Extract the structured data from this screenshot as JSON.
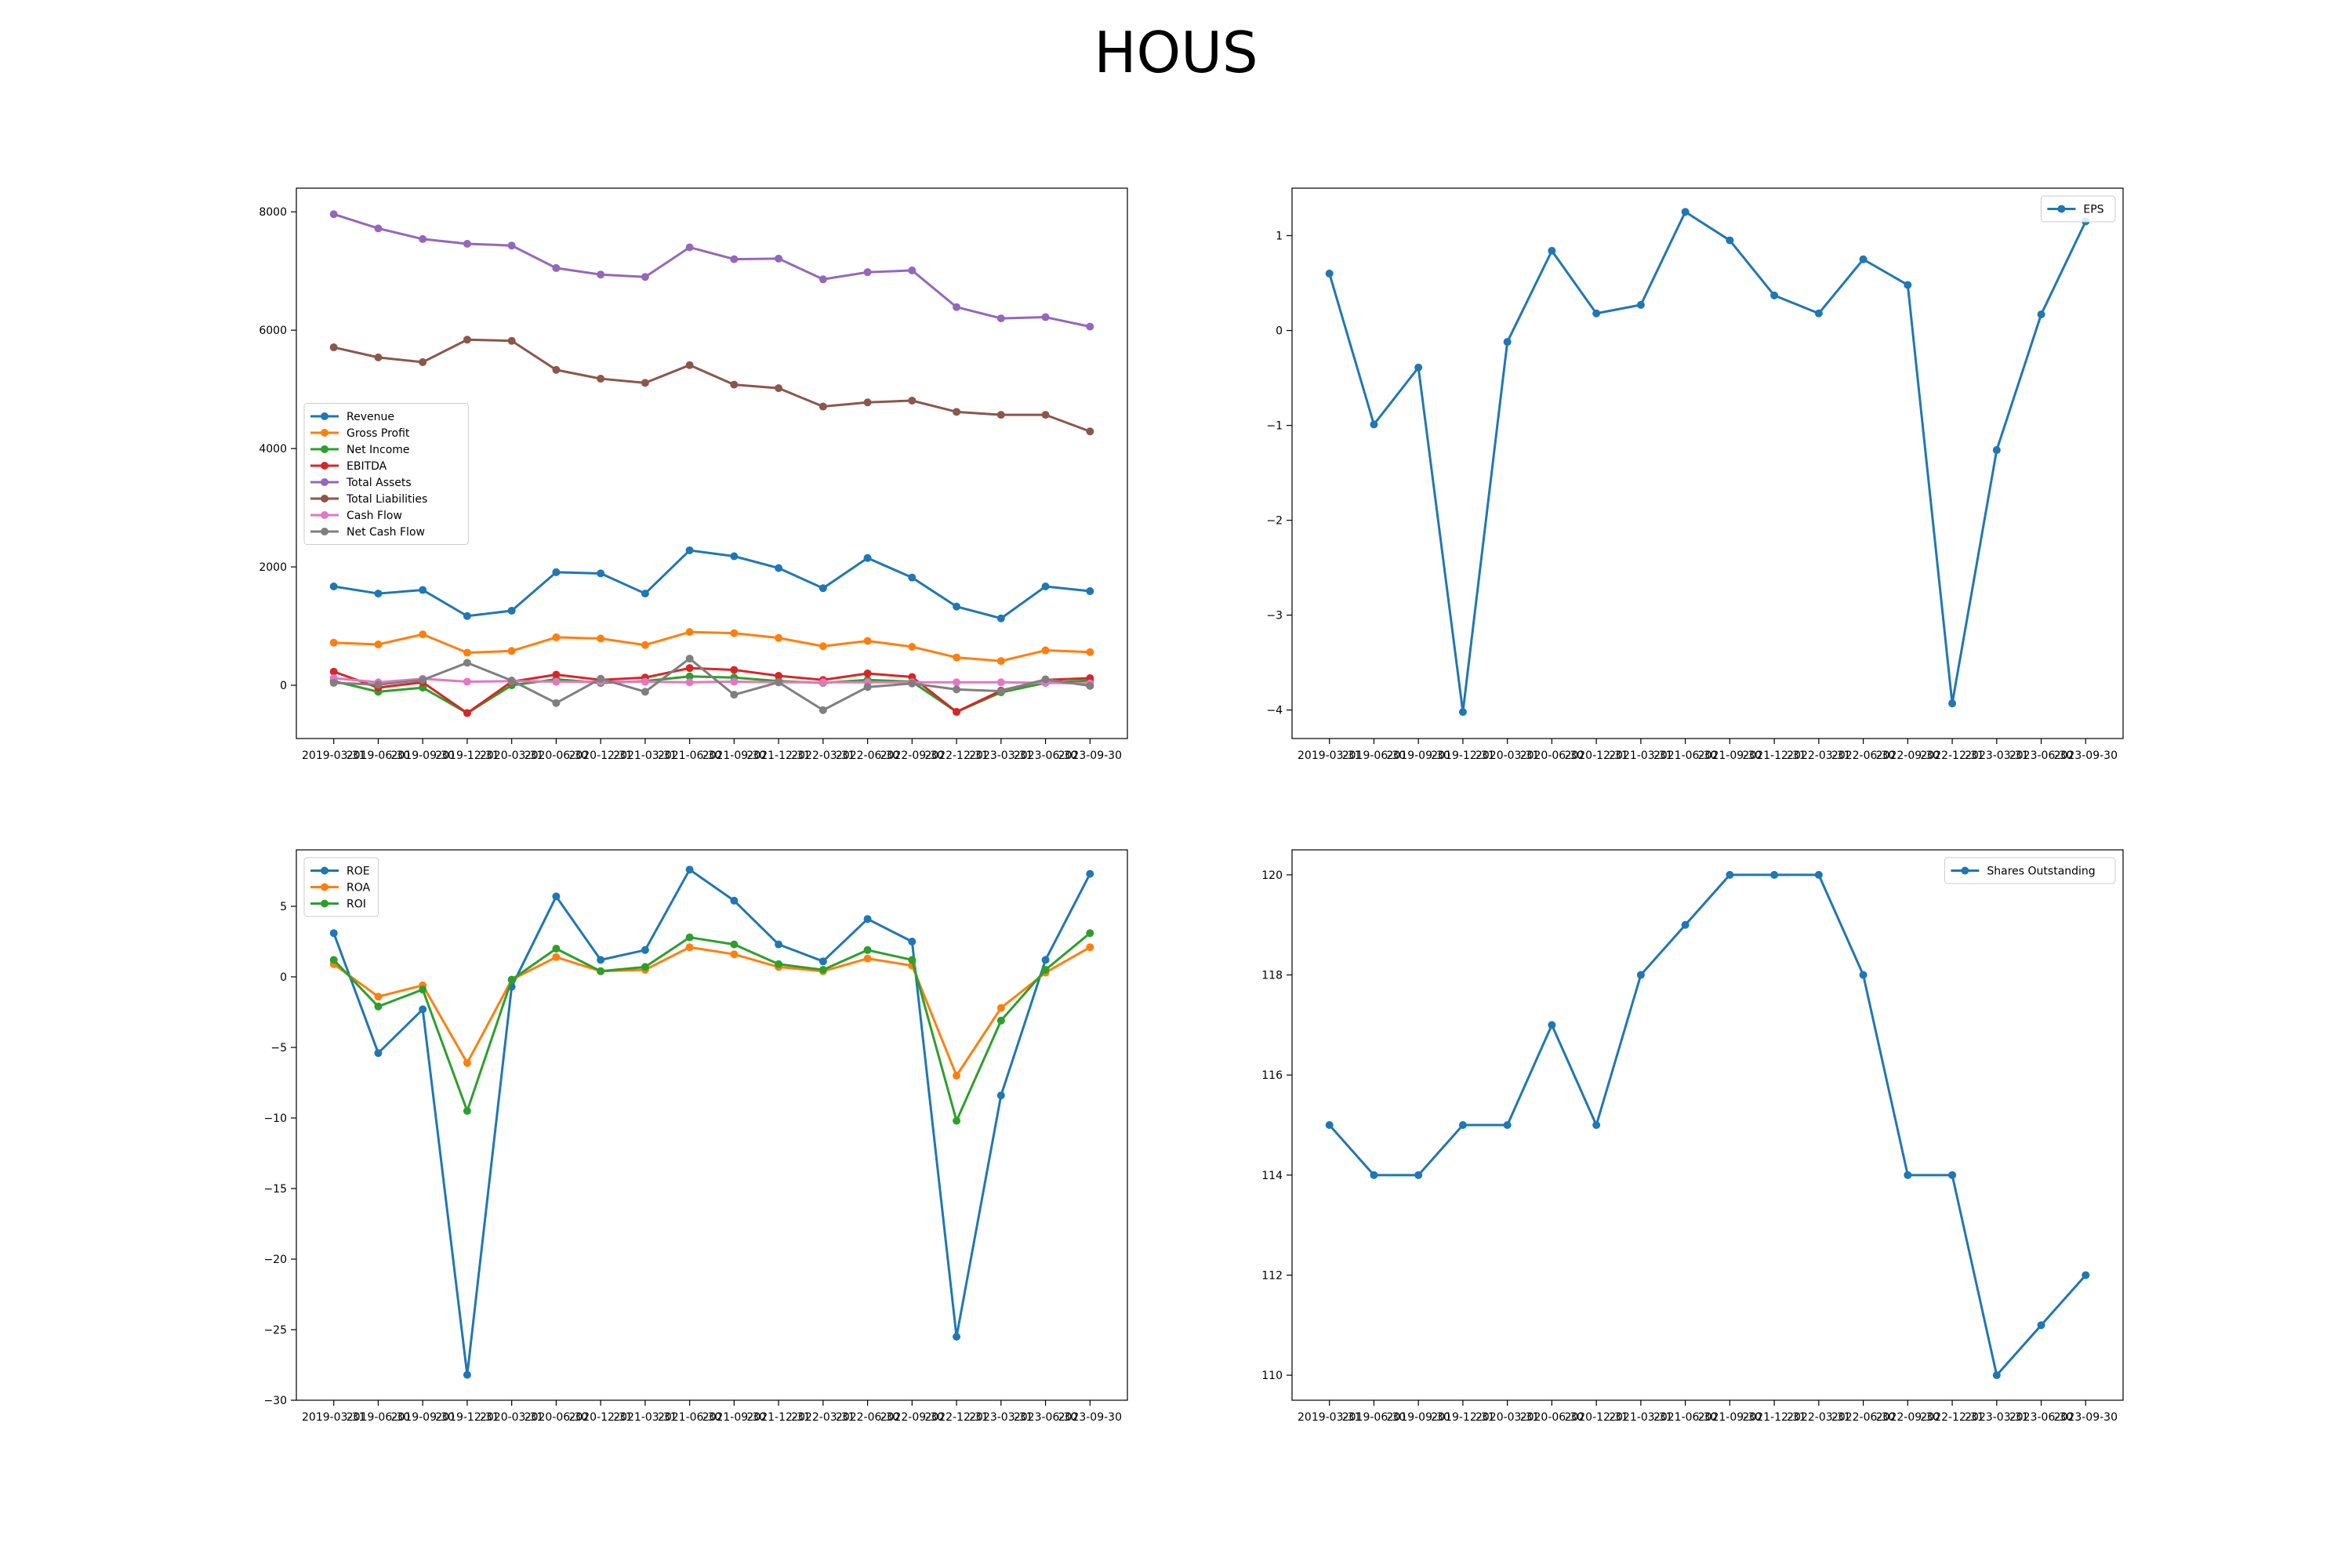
{
  "page_title": "HOUS",
  "x_dates": [
    "2019-03-31",
    "2019-06-30",
    "2019-09-30",
    "2019-12-31",
    "2020-03-31",
    "2020-06-30",
    "2020-12-31",
    "2021-03-31",
    "2021-06-30",
    "2021-09-30",
    "2021-12-31",
    "2022-03-31",
    "2022-06-30",
    "2022-09-30",
    "2022-12-31",
    "2023-03-31",
    "2023-06-30",
    "2023-09-30"
  ],
  "chart_data": [
    {
      "type": "line",
      "id": "financials",
      "title": "",
      "xlabel": "",
      "ylabel": "",
      "ylim": [
        -900,
        8400
      ],
      "yticks": [
        0,
        2000,
        4000,
        6000,
        8000
      ],
      "legend": "center-left",
      "grid": false,
      "series": [
        {
          "name": "Revenue",
          "color": "#1f77b4",
          "values": [
            1670,
            1550,
            1610,
            1170,
            1260,
            1910,
            1890,
            1550,
            2280,
            2180,
            1980,
            1640,
            2150,
            1820,
            1330,
            1130,
            1670,
            1590
          ]
        },
        {
          "name": "Gross Profit",
          "color": "#ff7f0e",
          "values": [
            720,
            690,
            860,
            550,
            580,
            810,
            790,
            680,
            900,
            880,
            800,
            660,
            750,
            650,
            470,
            410,
            590,
            560
          ]
        },
        {
          "name": "Net Income",
          "color": "#2ca02c",
          "values": [
            70,
            -110,
            -40,
            -470,
            0,
            100,
            40,
            70,
            150,
            130,
            70,
            40,
            90,
            60,
            -450,
            -120,
            40,
            80
          ]
        },
        {
          "name": "EBITDA",
          "color": "#d62728",
          "values": [
            230,
            -40,
            50,
            -470,
            60,
            180,
            90,
            130,
            290,
            260,
            160,
            90,
            200,
            140,
            -450,
            -90,
            90,
            120
          ]
        },
        {
          "name": "Total Assets",
          "color": "#9467bd",
          "values": [
            7960,
            7720,
            7540,
            7460,
            7430,
            7050,
            6940,
            6900,
            7400,
            7200,
            7210,
            6860,
            6980,
            7010,
            6390,
            6200,
            6220,
            6060
          ]
        },
        {
          "name": "Total Liabilities",
          "color": "#8c564b",
          "values": [
            5710,
            5540,
            5460,
            5840,
            5820,
            5330,
            5180,
            5110,
            5410,
            5080,
            5020,
            4710,
            4780,
            4810,
            4620,
            4570,
            4570,
            4290
          ]
        },
        {
          "name": "Cash Flow",
          "color": "#e377c2",
          "values": [
            120,
            50,
            110,
            60,
            70,
            60,
            60,
            60,
            50,
            60,
            50,
            50,
            50,
            50,
            50,
            50,
            40,
            30
          ]
        },
        {
          "name": "Net Cash Flow",
          "color": "#7f7f7f",
          "values": [
            40,
            10,
            90,
            380,
            80,
            -300,
            110,
            -110,
            450,
            -160,
            50,
            -420,
            -30,
            30,
            -70,
            -100,
            100,
            -10
          ]
        }
      ]
    },
    {
      "type": "line",
      "id": "eps",
      "title": "",
      "xlabel": "",
      "ylabel": "",
      "ylim": [
        -4.3,
        1.5
      ],
      "yticks": [
        -4,
        -3,
        -2,
        -1,
        0,
        1
      ],
      "legend": "top-right",
      "grid": false,
      "series": [
        {
          "name": "EPS",
          "color": "#1f77b4",
          "values": [
            0.6,
            -0.99,
            -0.39,
            -4.02,
            -0.12,
            0.84,
            0.18,
            0.27,
            1.25,
            0.95,
            0.37,
            0.18,
            0.75,
            0.48,
            -3.93,
            -1.26,
            0.17,
            1.15
          ]
        }
      ]
    },
    {
      "type": "line",
      "id": "ratios",
      "title": "",
      "xlabel": "",
      "ylabel": "",
      "ylim": [
        -30,
        9
      ],
      "yticks": [
        -30,
        -25,
        -20,
        -15,
        -10,
        -5,
        0,
        5
      ],
      "legend": "top-left",
      "grid": false,
      "series": [
        {
          "name": "ROE",
          "color": "#1f77b4",
          "values": [
            3.1,
            -5.4,
            -2.3,
            -28.2,
            -0.7,
            5.7,
            1.2,
            1.9,
            7.6,
            5.4,
            2.3,
            1.1,
            4.1,
            2.5,
            -25.5,
            -8.4,
            1.2,
            7.3
          ]
        },
        {
          "name": "ROA",
          "color": "#ff7f0e",
          "values": [
            0.9,
            -1.4,
            -0.6,
            -6.1,
            -0.2,
            1.4,
            0.4,
            0.5,
            2.1,
            1.6,
            0.7,
            0.4,
            1.3,
            0.8,
            -7.0,
            -2.2,
            0.3,
            2.1
          ]
        },
        {
          "name": "ROI",
          "color": "#2ca02c",
          "values": [
            1.2,
            -2.1,
            -0.9,
            -9.5,
            -0.2,
            2.0,
            0.4,
            0.7,
            2.8,
            2.3,
            0.9,
            0.5,
            1.9,
            1.2,
            -10.2,
            -3.1,
            0.5,
            3.1
          ]
        }
      ]
    },
    {
      "type": "line",
      "id": "shares",
      "title": "",
      "xlabel": "",
      "ylabel": "",
      "ylim": [
        109.5,
        120.5
      ],
      "yticks": [
        110,
        112,
        114,
        116,
        118,
        120
      ],
      "legend": "top-right",
      "grid": false,
      "series": [
        {
          "name": "Shares Outstanding",
          "color": "#1f77b4",
          "values": [
            115,
            114,
            114,
            115,
            115,
            117,
            115,
            118,
            119,
            120,
            120,
            120,
            118,
            114,
            114,
            110,
            111,
            112
          ]
        }
      ]
    }
  ]
}
